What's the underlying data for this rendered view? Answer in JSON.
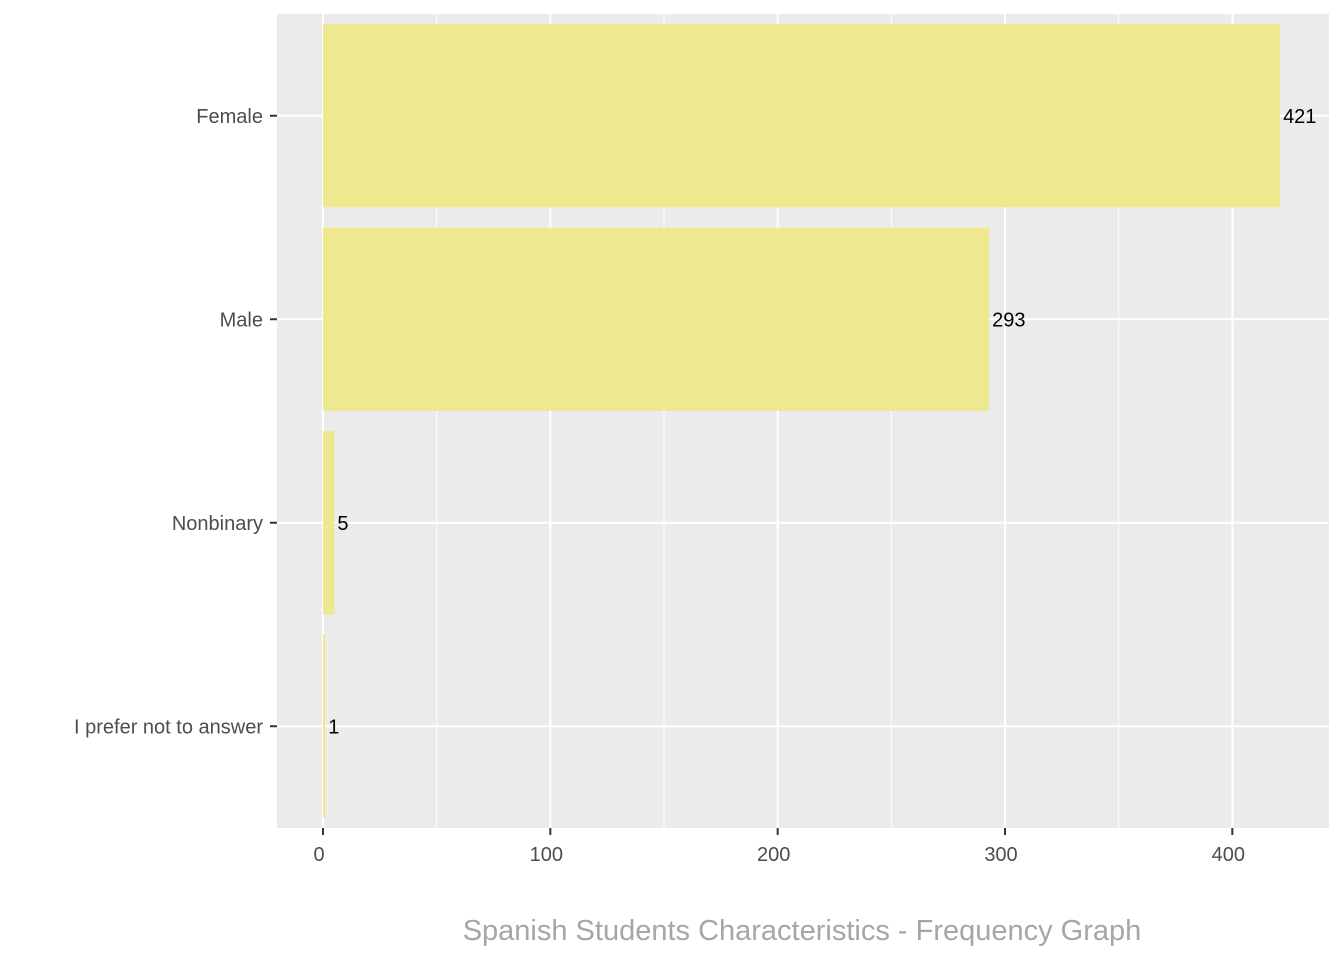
{
  "chart_data": {
    "type": "bar",
    "orientation": "horizontal",
    "categories": [
      "Female",
      "Male",
      "Nonbinary",
      "I prefer not to answer"
    ],
    "values": [
      421,
      293,
      5,
      1
    ],
    "xlim": [
      -20,
      441
    ],
    "x_ticks": [
      0,
      100,
      200,
      300,
      400
    ],
    "x_tick_labels": [
      "0",
      "100",
      "200",
      "300",
      "400"
    ],
    "caption": "Spanish Students Characteristics - Frequency Graph",
    "grid": true,
    "legend": "none",
    "colors": {
      "bar": "#EEE88E",
      "panel": "#EBEBEB",
      "grid": "#FFFFFF",
      "tick_text": "#4D4D4D",
      "value_text": "#000000",
      "caption_text": "#A6A6A6"
    }
  }
}
